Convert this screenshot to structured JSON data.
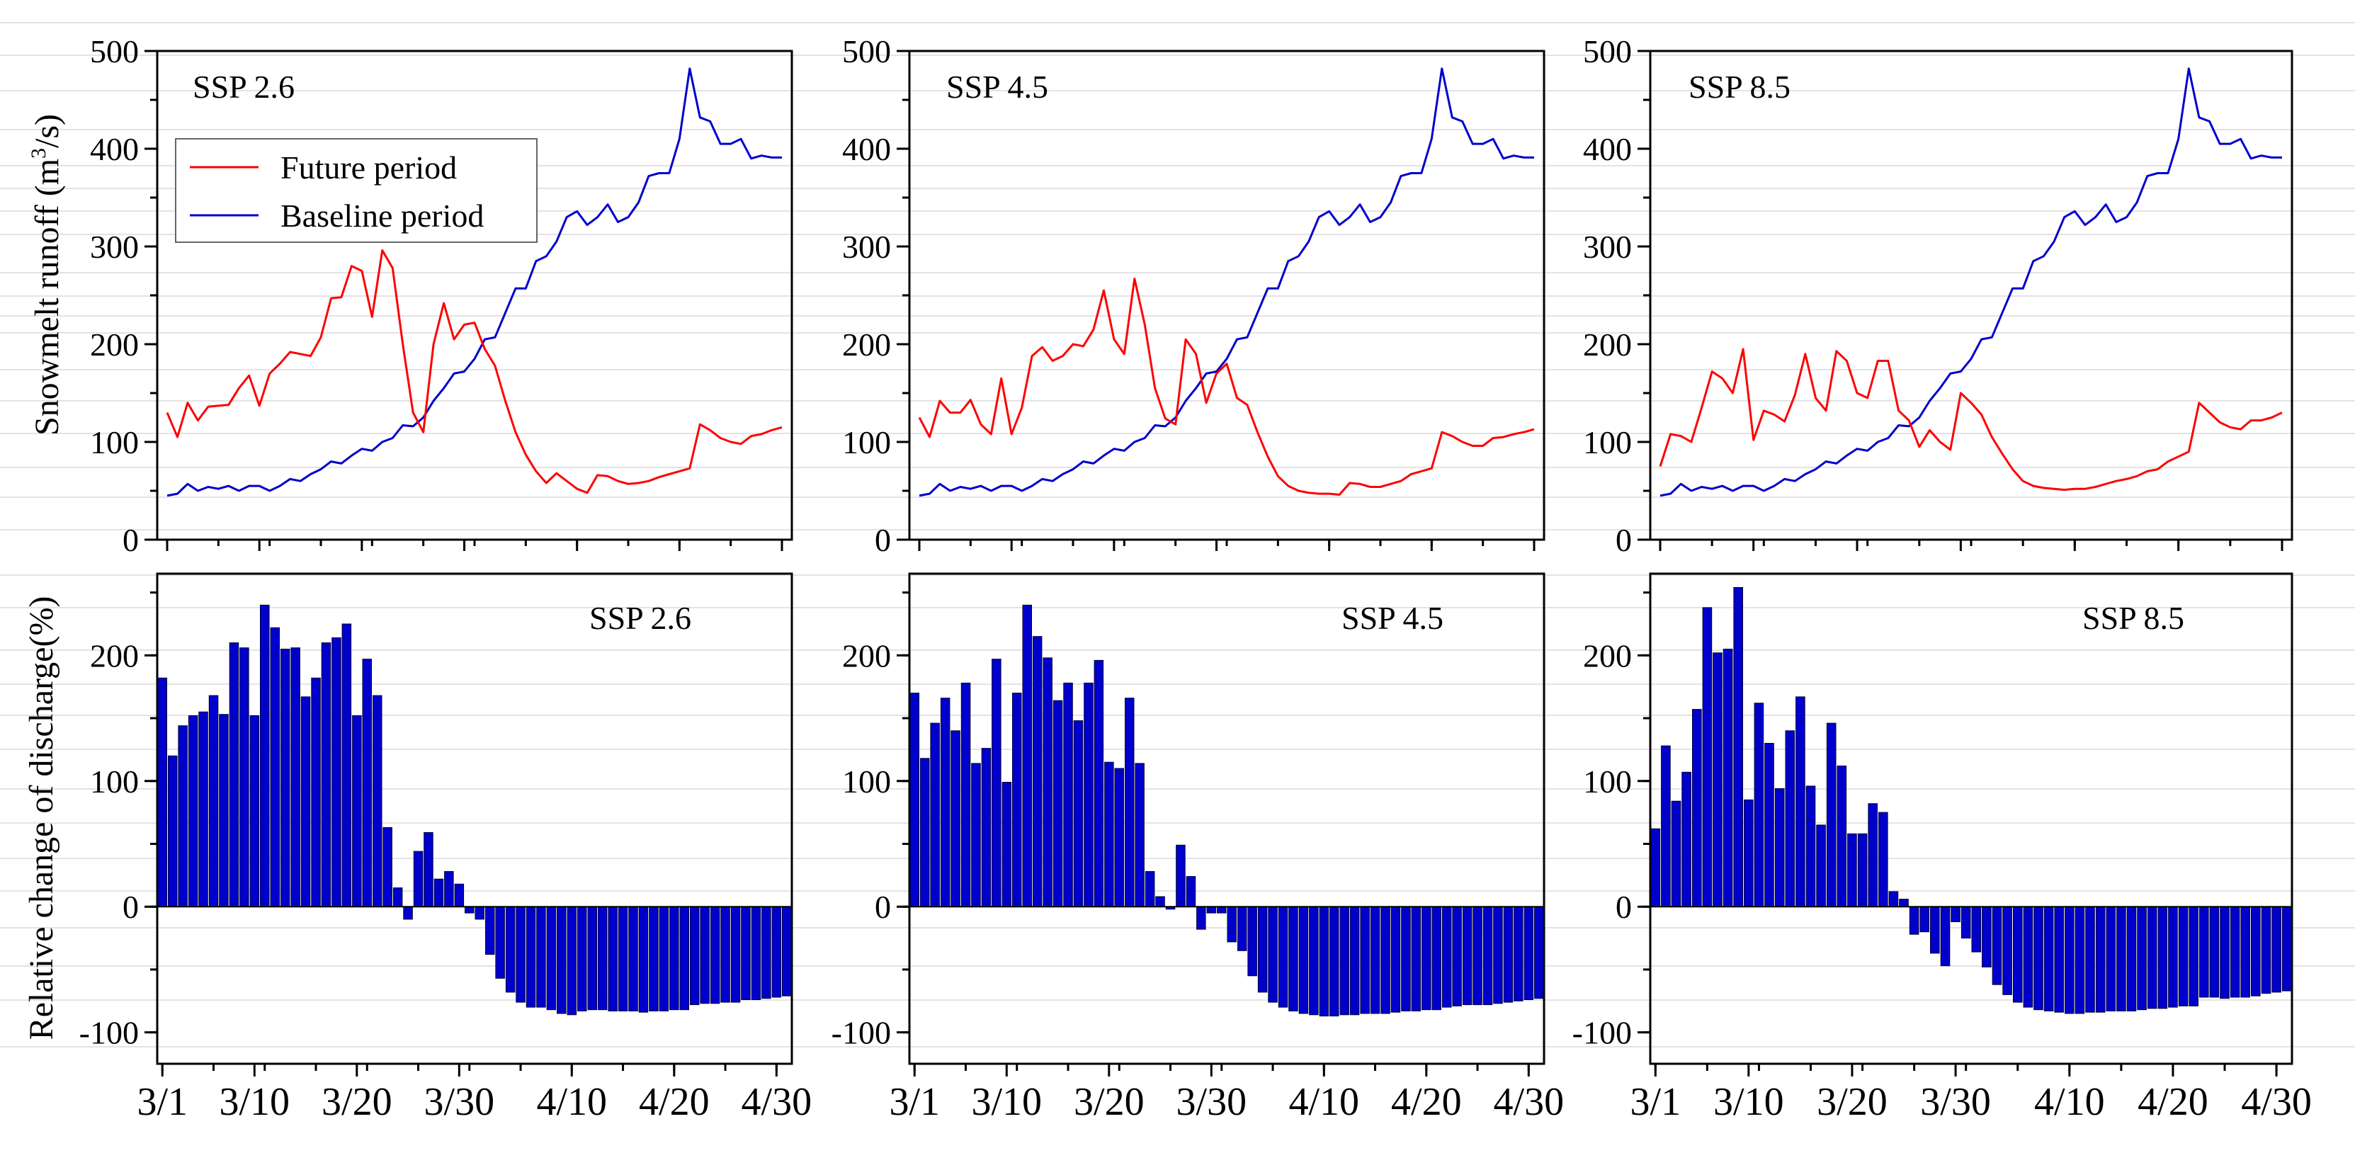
{
  "chart_data": [
    {
      "type": "line",
      "panel_label": "SSP 2.6",
      "ylabel": "Snowmelt runoff (m",
      "ylabel_sup": "3",
      "ylabel_end": "/s)",
      "ylim": [
        0,
        500
      ],
      "yticks": [
        0,
        100,
        200,
        300,
        400,
        500
      ],
      "xlabels": [
        "3/1",
        "3/10",
        "3/20",
        "3/30",
        "4/10",
        "4/20",
        "4/30"
      ],
      "legend": {
        "position": "top-left",
        "entries": [
          {
            "label": "Future period",
            "color": "#ff0000"
          },
          {
            "label": "Baseline period",
            "color": "#0000cc"
          }
        ]
      },
      "series": [
        {
          "name": "Future period",
          "color": "#ff0000",
          "values": [
            130,
            105,
            140,
            122,
            136,
            137,
            138,
            155,
            168,
            137,
            170,
            180,
            192,
            190,
            188,
            207,
            247,
            248,
            280,
            275,
            228,
            296,
            278,
            200,
            130,
            110,
            200,
            242,
            205,
            220,
            222,
            195,
            178,
            142,
            110,
            87,
            70,
            58,
            68,
            60,
            52,
            48,
            66,
            65,
            60,
            57,
            58,
            60,
            64,
            67,
            70,
            73,
            118,
            112,
            104,
            100,
            98,
            106,
            108,
            112,
            115
          ]
        },
        {
          "name": "Baseline period",
          "color": "#0000cc",
          "values": [
            45,
            47,
            57,
            50,
            54,
            52,
            55,
            50,
            55,
            55,
            50,
            55,
            62,
            60,
            67,
            72,
            80,
            78,
            86,
            93,
            91,
            100,
            104,
            117,
            116,
            125,
            142,
            155,
            170,
            172,
            185,
            205,
            207,
            232,
            257,
            257,
            285,
            290,
            305,
            330,
            336,
            322,
            330,
            343,
            325,
            330,
            345,
            372,
            375,
            375,
            410,
            482,
            432,
            428,
            405,
            405,
            410,
            390,
            393,
            391,
            391
          ]
        }
      ]
    },
    {
      "type": "line",
      "panel_label": "SSP 4.5",
      "ylim": [
        0,
        500
      ],
      "yticks": [
        0,
        100,
        200,
        300,
        400,
        500
      ],
      "xlabels": [
        "3/1",
        "3/10",
        "3/20",
        "3/30",
        "4/10",
        "4/20",
        "4/30"
      ],
      "series": [
        {
          "name": "Future period",
          "color": "#ff0000",
          "values": [
            125,
            105,
            142,
            130,
            130,
            143,
            118,
            108,
            165,
            108,
            135,
            188,
            197,
            183,
            188,
            200,
            198,
            215,
            255,
            205,
            190,
            267,
            220,
            155,
            124,
            118,
            205,
            190,
            140,
            170,
            180,
            145,
            138,
            110,
            85,
            65,
            55,
            50,
            48,
            47,
            47,
            46,
            58,
            57,
            54,
            54,
            57,
            60,
            67,
            70,
            73,
            110,
            106,
            100,
            96,
            96,
            104,
            105,
            108,
            110,
            113
          ]
        },
        {
          "name": "Baseline period",
          "color": "#0000cc",
          "values": [
            45,
            47,
            57,
            50,
            54,
            52,
            55,
            50,
            55,
            55,
            50,
            55,
            62,
            60,
            67,
            72,
            80,
            78,
            86,
            93,
            91,
            100,
            104,
            117,
            116,
            125,
            142,
            155,
            170,
            172,
            185,
            205,
            207,
            232,
            257,
            257,
            285,
            290,
            305,
            330,
            336,
            322,
            330,
            343,
            325,
            330,
            345,
            372,
            375,
            375,
            410,
            482,
            432,
            428,
            405,
            405,
            410,
            390,
            393,
            391,
            391
          ]
        }
      ]
    },
    {
      "type": "line",
      "panel_label": "SSP 8.5",
      "ylim": [
        0,
        500
      ],
      "yticks": [
        0,
        100,
        200,
        300,
        400,
        500
      ],
      "xlabels": [
        "3/1",
        "3/10",
        "3/20",
        "3/30",
        "4/10",
        "4/20",
        "4/30"
      ],
      "series": [
        {
          "name": "Future period",
          "color": "#ff0000",
          "values": [
            75,
            108,
            106,
            100,
            135,
            172,
            165,
            150,
            195,
            102,
            132,
            128,
            121,
            148,
            190,
            145,
            132,
            193,
            183,
            150,
            145,
            183,
            183,
            132,
            122,
            95,
            112,
            100,
            92,
            150,
            140,
            128,
            105,
            88,
            72,
            60,
            55,
            53,
            52,
            51,
            52,
            52,
            54,
            57,
            60,
            62,
            65,
            70,
            72,
            80,
            85,
            90,
            140,
            130,
            120,
            115,
            113,
            122,
            122,
            125,
            130
          ]
        },
        {
          "name": "Baseline period",
          "color": "#0000cc",
          "values": [
            45,
            47,
            57,
            50,
            54,
            52,
            55,
            50,
            55,
            55,
            50,
            55,
            62,
            60,
            67,
            72,
            80,
            78,
            86,
            93,
            91,
            100,
            104,
            117,
            116,
            125,
            142,
            155,
            170,
            172,
            185,
            205,
            207,
            232,
            257,
            257,
            285,
            290,
            305,
            330,
            336,
            322,
            330,
            343,
            325,
            330,
            345,
            372,
            375,
            375,
            410,
            482,
            432,
            428,
            405,
            405,
            410,
            390,
            393,
            391,
            391
          ]
        }
      ]
    },
    {
      "type": "bar",
      "panel_label": "SSP 2.6",
      "ylabel": "Relative change of discharge(%)",
      "ylim": [
        -125,
        265
      ],
      "yticks": [
        -100,
        0,
        100,
        200
      ],
      "xlabels": [
        "3/1",
        "3/10",
        "3/20",
        "3/30",
        "4/10",
        "4/20",
        "4/30"
      ],
      "series": [
        {
          "name": "Relative change",
          "color": "#0000cc",
          "values": [
            182,
            120,
            144,
            152,
            155,
            168,
            153,
            210,
            206,
            152,
            240,
            222,
            205,
            206,
            167,
            182,
            210,
            214,
            225,
            152,
            197,
            168,
            63,
            15,
            -10,
            44,
            59,
            22,
            28,
            18,
            -5,
            -10,
            -38,
            -57,
            -68,
            -76,
            -80,
            -80,
            -82,
            -85,
            -86,
            -83,
            -82,
            -82,
            -83,
            -83,
            -83,
            -84,
            -83,
            -83,
            -82,
            -82,
            -78,
            -77,
            -77,
            -76,
            -76,
            -74,
            -74,
            -73,
            -72,
            -71
          ]
        }
      ]
    },
    {
      "type": "bar",
      "panel_label": "SSP 4.5",
      "ylim": [
        -125,
        265
      ],
      "yticks": [
        -100,
        0,
        100,
        200
      ],
      "xlabels": [
        "3/1",
        "3/10",
        "3/20",
        "3/30",
        "4/10",
        "4/20",
        "4/30"
      ],
      "series": [
        {
          "name": "Relative change",
          "color": "#0000cc",
          "values": [
            170,
            118,
            146,
            166,
            140,
            178,
            114,
            126,
            197,
            99,
            170,
            240,
            215,
            198,
            164,
            178,
            148,
            178,
            196,
            115,
            110,
            166,
            114,
            28,
            8,
            -2,
            49,
            24,
            -18,
            -5,
            -5,
            -28,
            -35,
            -55,
            -68,
            -76,
            -80,
            -83,
            -85,
            -86,
            -87,
            -87,
            -86,
            -86,
            -85,
            -85,
            -85,
            -84,
            -83,
            -83,
            -82,
            -82,
            -80,
            -79,
            -78,
            -78,
            -78,
            -77,
            -76,
            -75,
            -74,
            -73
          ]
        }
      ]
    },
    {
      "type": "bar",
      "panel_label": "SSP 8.5",
      "ylim": [
        -125,
        265
      ],
      "yticks": [
        -100,
        0,
        100,
        200
      ],
      "xlabels": [
        "3/1",
        "3/10",
        "3/20",
        "3/30",
        "4/10",
        "4/20",
        "4/30"
      ],
      "series": [
        {
          "name": "Relative change",
          "color": "#0000cc",
          "values": [
            62,
            128,
            84,
            107,
            157,
            238,
            202,
            205,
            254,
            85,
            162,
            130,
            94,
            140,
            167,
            96,
            65,
            146,
            112,
            58,
            58,
            82,
            75,
            12,
            6,
            -22,
            -20,
            -37,
            -47,
            -12,
            -25,
            -36,
            -48,
            -62,
            -70,
            -76,
            -80,
            -82,
            -83,
            -84,
            -85,
            -85,
            -84,
            -84,
            -83,
            -83,
            -83,
            -82,
            -81,
            -81,
            -80,
            -79,
            -79,
            -72,
            -72,
            -73,
            -72,
            -72,
            -71,
            -69,
            -68,
            -67
          ]
        }
      ]
    }
  ]
}
